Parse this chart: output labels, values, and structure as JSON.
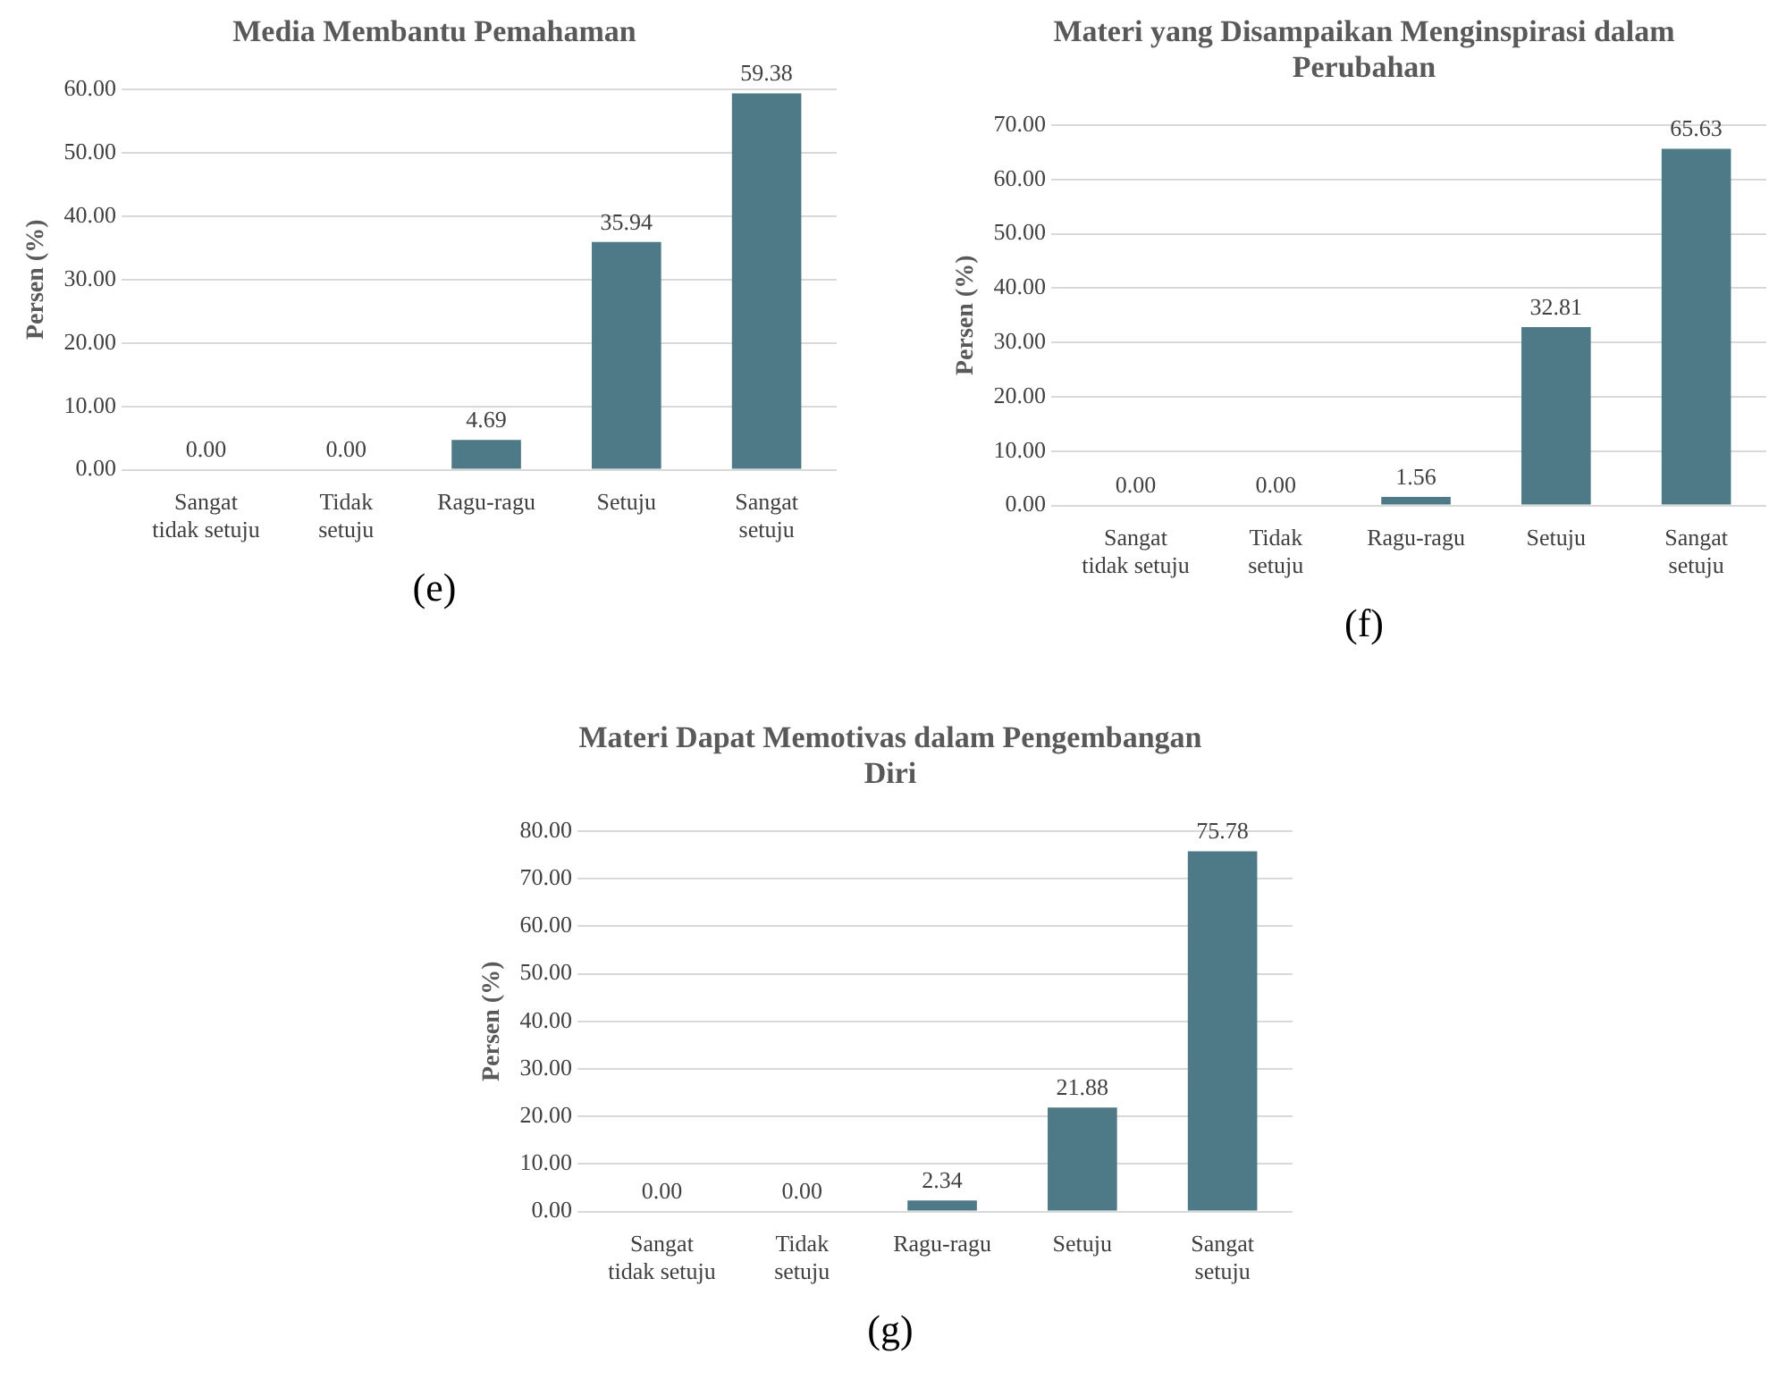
{
  "chart_data": [
    {
      "type": "bar",
      "title": "Media Membantu Pemahaman",
      "ylabel": "Persen (%)",
      "categories": [
        "Sangat tidak setuju",
        "Tidak setuju",
        "Ragu-ragu",
        "Setuju",
        "Sangat setuju"
      ],
      "values": [
        0,
        0,
        4.69,
        35.94,
        59.38
      ],
      "value_labels": [
        "0.00",
        "0.00",
        "4.69",
        "35.94",
        "59.38"
      ],
      "color": "#4e7a88",
      "ylim": [
        0,
        60
      ],
      "yticks": [
        {
          "value": 0,
          "label": "0.00"
        },
        {
          "value": 10,
          "label": "10.00"
        },
        {
          "value": 20,
          "label": "20.00"
        },
        {
          "value": 30,
          "label": "30.00"
        },
        {
          "value": 40,
          "label": "40.00"
        },
        {
          "value": 50,
          "label": "50.00"
        },
        {
          "value": 60,
          "label": "60.00"
        }
      ],
      "grid": "y",
      "annotations": [
        "(e)"
      ]
    },
    {
      "type": "bar",
      "title": "Materi yang Disampaikan Menginspirasi dalam Perubahan",
      "ylabel": "Persen (%)",
      "categories": [
        "Sangat tidak setuju",
        "Tidak setuju",
        "Ragu-ragu",
        "Setuju",
        "Sangat setuju"
      ],
      "values": [
        0,
        0,
        1.56,
        32.81,
        65.63
      ],
      "value_labels": [
        "0.00",
        "0.00",
        "1.56",
        "32.81",
        "65.63"
      ],
      "color": "#4e7a88",
      "ylim": [
        0,
        70
      ],
      "yticks": [
        {
          "value": 0,
          "label": "0.00"
        },
        {
          "value": 10,
          "label": "10.00"
        },
        {
          "value": 20,
          "label": "20.00"
        },
        {
          "value": 30,
          "label": "30.00"
        },
        {
          "value": 40,
          "label": "40.00"
        },
        {
          "value": 50,
          "label": "50.00"
        },
        {
          "value": 60,
          "label": "60.00"
        },
        {
          "value": 70,
          "label": "70.00"
        }
      ],
      "grid": "y",
      "annotations": [
        "(f)"
      ]
    },
    {
      "type": "bar",
      "title": "Materi Dapat Memotivas dalam Pengembangan Diri",
      "ylabel": "Persen (%)",
      "categories": [
        "Sangat tidak setuju",
        "Tidak setuju",
        "Ragu-ragu",
        "Setuju",
        "Sangat setuju"
      ],
      "values": [
        0,
        0,
        2.34,
        21.88,
        75.78
      ],
      "value_labels": [
        "0.00",
        "0.00",
        "2.34",
        "21.88",
        "75.78"
      ],
      "color": "#4e7a88",
      "ylim": [
        0,
        80
      ],
      "yticks": [
        {
          "value": 0,
          "label": "0.00"
        },
        {
          "value": 10,
          "label": "10.00"
        },
        {
          "value": 20,
          "label": "20.00"
        },
        {
          "value": 30,
          "label": "30.00"
        },
        {
          "value": 40,
          "label": "40.00"
        },
        {
          "value": 50,
          "label": "50.00"
        },
        {
          "value": 60,
          "label": "60.00"
        },
        {
          "value": 70,
          "label": "70.00"
        },
        {
          "value": 80,
          "label": "80.00"
        }
      ],
      "grid": "y",
      "annotations": [
        "(g)"
      ]
    }
  ]
}
